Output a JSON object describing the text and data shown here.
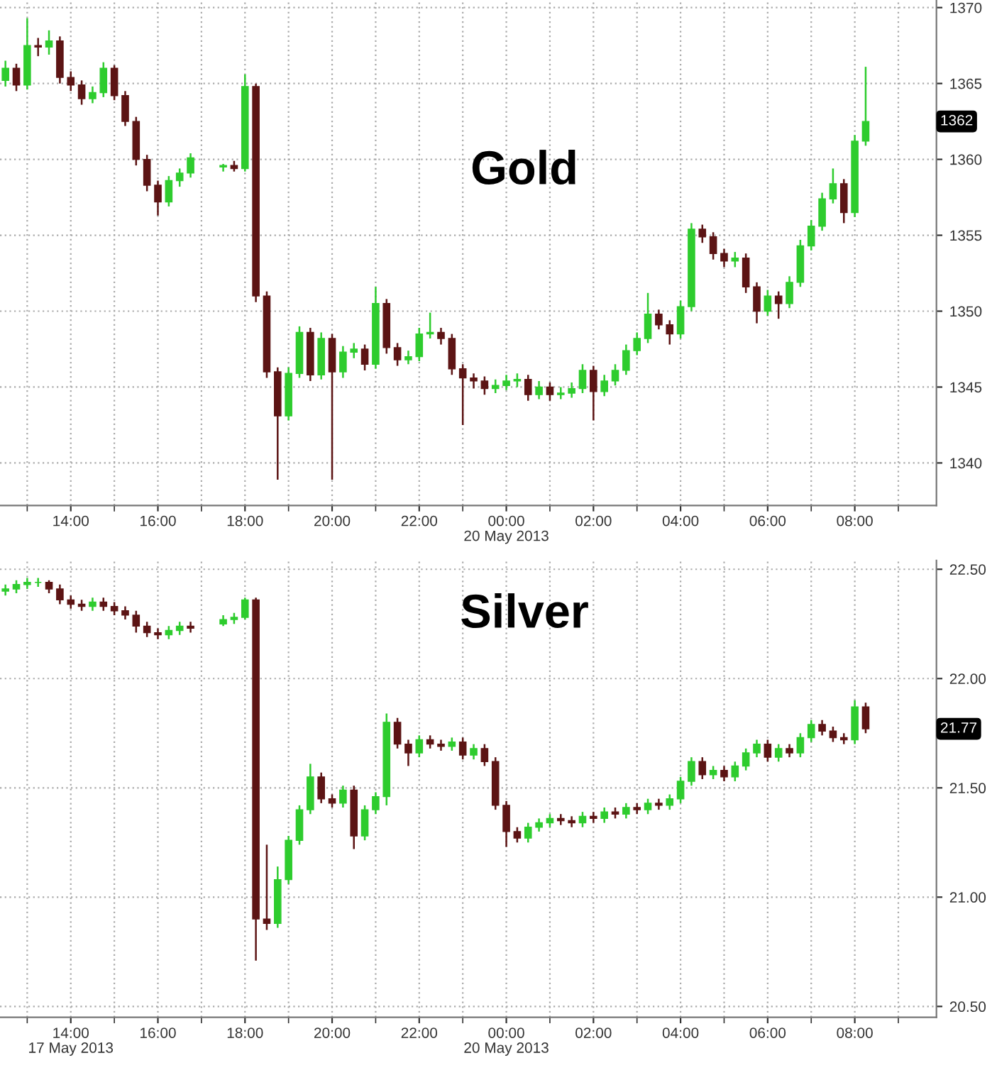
{
  "chart_data": [
    {
      "type": "candlestick",
      "title": "Gold",
      "grid": true,
      "categories": [
        null,
        null,
        null,
        null,
        null,
        null,
        "14:00",
        null,
        null,
        null,
        null,
        null,
        null,
        null,
        "16:00",
        null,
        null,
        null,
        null,
        null,
        null,
        null,
        "18:00",
        null,
        null,
        null,
        null,
        null,
        null,
        null,
        "20:00",
        null,
        null,
        null,
        null,
        null,
        null,
        null,
        "22:00",
        null,
        null,
        null,
        null,
        null,
        null,
        null,
        "00:00\n20 May 2013",
        null,
        null,
        null,
        null,
        null,
        null,
        null,
        "02:00",
        null,
        null,
        null,
        null,
        null,
        null,
        null,
        "04:00",
        null,
        null,
        null,
        null,
        null,
        null,
        null,
        "06:00",
        null,
        null,
        null,
        null,
        null,
        null,
        null,
        "08:00",
        null,
        null,
        null,
        null,
        null,
        null,
        null
      ],
      "ylim": [
        1337.2,
        1370.5
      ],
      "yticks": [
        1340,
        1345,
        1350,
        1355,
        1360,
        1365,
        1370
      ],
      "annotations": [
        "1362"
      ],
      "colors": [
        "#2ecc2e",
        "#5c1414",
        "#2ecc2e",
        "#5c1414",
        "#2ecc2e",
        "#5c1414",
        "#5c1414",
        "#5c1414",
        "#2ecc2e",
        "#2ecc2e",
        "#5c1414",
        "#5c1414",
        "#5c1414",
        "#5c1414",
        "#5c1414",
        "#2ecc2e",
        "#2ecc2e",
        "#2ecc2e",
        null,
        null,
        "#2ecc2e",
        "#5c1414",
        "#2ecc2e",
        "#5c1414",
        "#5c1414",
        "#5c1414",
        "#2ecc2e",
        "#2ecc2e",
        "#5c1414",
        "#2ecc2e",
        "#5c1414",
        "#2ecc2e",
        "#2ecc2e",
        "#5c1414",
        "#2ecc2e",
        "#5c1414",
        "#5c1414",
        "#2ecc2e",
        "#2ecc2e",
        "#2ecc2e",
        "#5c1414",
        "#5c1414",
        "#5c1414",
        "#5c1414",
        "#5c1414",
        "#2ecc2e",
        "#2ecc2e",
        "#2ecc2e",
        "#5c1414",
        "#2ecc2e",
        "#5c1414",
        "#2ecc2e",
        "#2ecc2e",
        "#2ecc2e",
        "#5c1414",
        "#2ecc2e",
        "#2ecc2e",
        "#2ecc2e",
        "#2ecc2e",
        "#2ecc2e",
        "#5c1414",
        "#5c1414",
        "#2ecc2e",
        "#2ecc2e",
        "#5c1414",
        "#5c1414",
        "#5c1414",
        "#2ecc2e",
        "#5c1414",
        "#5c1414",
        "#2ecc2e",
        "#5c1414",
        "#2ecc2e",
        "#2ecc2e",
        "#2ecc2e",
        "#2ecc2e",
        "#2ecc2e",
        "#5c1414",
        "#2ecc2e",
        "#2ecc2e",
        null,
        null,
        null,
        null,
        null,
        null
      ],
      "ohlc": [
        [
          1365.2,
          1366.5,
          1364.8,
          1366.0
        ],
        [
          1366.0,
          1366.3,
          1364.5,
          1364.9
        ],
        [
          1364.9,
          1369.3,
          1364.6,
          1367.5
        ],
        [
          1367.5,
          1368.0,
          1366.8,
          1367.4
        ],
        [
          1367.4,
          1368.5,
          1366.9,
          1367.8
        ],
        [
          1367.8,
          1368.1,
          1365.0,
          1365.4
        ],
        [
          1365.4,
          1365.8,
          1364.5,
          1364.9
        ],
        [
          1364.9,
          1365.2,
          1363.6,
          1364.0
        ],
        [
          1364.0,
          1364.8,
          1363.7,
          1364.4
        ],
        [
          1364.4,
          1366.4,
          1364.1,
          1366.0
        ],
        [
          1366.0,
          1366.2,
          1363.9,
          1364.2
        ],
        [
          1364.2,
          1364.5,
          1362.2,
          1362.5
        ],
        [
          1362.5,
          1362.8,
          1359.6,
          1360.0
        ],
        [
          1360.0,
          1360.3,
          1357.9,
          1358.3
        ],
        [
          1358.3,
          1358.6,
          1356.3,
          1357.2
        ],
        [
          1357.2,
          1358.9,
          1356.9,
          1358.6
        ],
        [
          1358.6,
          1359.4,
          1358.2,
          1359.1
        ],
        [
          1359.1,
          1360.4,
          1358.8,
          1360.1
        ],
        null,
        null,
        [
          1359.5,
          1359.7,
          1359.2,
          1359.6
        ],
        [
          1359.6,
          1359.9,
          1359.2,
          1359.4
        ],
        [
          1359.4,
          1365.6,
          1359.2,
          1364.8
        ],
        [
          1364.8,
          1365.0,
          1350.6,
          1351.0
        ],
        [
          1351.0,
          1351.3,
          1345.6,
          1346.0
        ],
        [
          1346.0,
          1346.3,
          1338.9,
          1343.1
        ],
        [
          1343.1,
          1346.3,
          1342.8,
          1345.9
        ],
        [
          1345.9,
          1349.0,
          1345.6,
          1348.6
        ],
        [
          1348.6,
          1348.9,
          1345.4,
          1345.8
        ],
        [
          1345.8,
          1348.6,
          1345.5,
          1348.2
        ],
        [
          1348.2,
          1348.5,
          1338.9,
          1346.0
        ],
        [
          1346.0,
          1347.7,
          1345.6,
          1347.3
        ],
        [
          1347.3,
          1347.9,
          1346.9,
          1347.5
        ],
        [
          1347.5,
          1347.8,
          1346.1,
          1346.5
        ],
        [
          1346.5,
          1351.6,
          1346.2,
          1350.5
        ],
        [
          1350.5,
          1350.8,
          1347.2,
          1347.6
        ],
        [
          1347.6,
          1347.9,
          1346.4,
          1346.8
        ],
        [
          1346.8,
          1347.4,
          1346.5,
          1347.0
        ],
        [
          1347.0,
          1348.9,
          1346.7,
          1348.5
        ],
        [
          1348.5,
          1349.9,
          1348.2,
          1348.6
        ],
        [
          1348.6,
          1348.9,
          1347.8,
          1348.2
        ],
        [
          1348.2,
          1348.5,
          1345.8,
          1346.2
        ],
        [
          1346.2,
          1346.5,
          1342.5,
          1345.6
        ],
        [
          1345.6,
          1345.9,
          1344.9,
          1345.4
        ],
        [
          1345.4,
          1345.7,
          1344.5,
          1344.9
        ],
        [
          1344.9,
          1345.5,
          1344.6,
          1345.1
        ],
        [
          1345.1,
          1345.8,
          1344.8,
          1345.4
        ],
        [
          1345.4,
          1345.9,
          1345.0,
          1345.5
        ],
        [
          1345.5,
          1345.8,
          1344.1,
          1344.5
        ],
        [
          1344.5,
          1345.4,
          1344.2,
          1345.0
        ],
        [
          1345.0,
          1345.3,
          1344.1,
          1344.5
        ],
        [
          1344.5,
          1345.0,
          1344.2,
          1344.6
        ],
        [
          1344.6,
          1345.3,
          1344.3,
          1344.9
        ],
        [
          1344.9,
          1346.5,
          1344.6,
          1346.1
        ],
        [
          1346.1,
          1346.4,
          1342.8,
          1344.7
        ],
        [
          1344.7,
          1345.8,
          1344.4,
          1345.4
        ],
        [
          1345.4,
          1346.5,
          1345.1,
          1346.1
        ],
        [
          1346.1,
          1347.8,
          1345.8,
          1347.4
        ],
        [
          1347.4,
          1348.6,
          1347.1,
          1348.2
        ],
        [
          1348.2,
          1351.2,
          1347.9,
          1349.8
        ],
        [
          1349.8,
          1350.1,
          1348.8,
          1349.1
        ],
        [
          1349.1,
          1349.4,
          1347.8,
          1348.5
        ],
        [
          1348.5,
          1350.7,
          1348.2,
          1350.3
        ],
        [
          1350.3,
          1355.8,
          1350.0,
          1355.4
        ],
        [
          1355.4,
          1355.7,
          1354.5,
          1354.9
        ],
        [
          1354.9,
          1355.2,
          1353.4,
          1353.8
        ],
        [
          1353.8,
          1354.1,
          1352.9,
          1353.3
        ],
        [
          1353.3,
          1353.9,
          1352.9,
          1353.5
        ],
        [
          1353.5,
          1353.8,
          1351.2,
          1351.6
        ],
        [
          1351.6,
          1351.9,
          1349.2,
          1350.0
        ],
        [
          1350.0,
          1351.4,
          1349.7,
          1351.0
        ],
        [
          1351.0,
          1351.3,
          1349.5,
          1350.5
        ],
        [
          1350.5,
          1352.3,
          1350.2,
          1351.9
        ],
        [
          1351.9,
          1354.7,
          1351.6,
          1354.3
        ],
        [
          1354.3,
          1356.0,
          1354.0,
          1355.6
        ],
        [
          1355.6,
          1357.8,
          1355.3,
          1357.4
        ],
        [
          1357.4,
          1359.4,
          1357.1,
          1358.4
        ],
        [
          1358.4,
          1358.7,
          1355.8,
          1356.5
        ],
        [
          1356.5,
          1361.6,
          1356.2,
          1361.2
        ],
        [
          1361.2,
          1366.1,
          1360.9,
          1362.5
        ],
        null,
        null,
        null,
        null,
        null,
        null
      ]
    },
    {
      "type": "candlestick",
      "title": "Silver",
      "grid": true,
      "categories": [
        null,
        null,
        null,
        null,
        null,
        null,
        "14:00\n17 May 2013",
        null,
        null,
        null,
        null,
        null,
        null,
        null,
        "16:00",
        null,
        null,
        null,
        null,
        null,
        null,
        null,
        "18:00",
        null,
        null,
        null,
        null,
        null,
        null,
        null,
        "20:00",
        null,
        null,
        null,
        null,
        null,
        null,
        null,
        "22:00",
        null,
        null,
        null,
        null,
        null,
        null,
        null,
        "00:00\n20 May 2013",
        null,
        null,
        null,
        null,
        null,
        null,
        null,
        "02:00",
        null,
        null,
        null,
        null,
        null,
        null,
        null,
        "04:00",
        null,
        null,
        null,
        null,
        null,
        null,
        null,
        "06:00",
        null,
        null,
        null,
        null,
        null,
        null,
        null,
        "08:00",
        null,
        null,
        null,
        null,
        null,
        null,
        null
      ],
      "ylim": [
        20.45,
        22.54
      ],
      "yticks": [
        {
          "value": 20.5,
          "label": "20.50"
        },
        {
          "value": 21.0,
          "label": "21.00"
        },
        {
          "value": 21.5,
          "label": "21.50"
        },
        {
          "value": 22.0,
          "label": "22.00"
        },
        {
          "value": 22.5,
          "label": "22.50"
        }
      ],
      "annotations": [
        "21.77"
      ],
      "colors": [
        "#2ecc2e",
        "#2ecc2e",
        "#2ecc2e",
        "#2ecc2e",
        "#5c1414",
        "#5c1414",
        "#5c1414",
        "#5c1414",
        "#2ecc2e",
        "#5c1414",
        "#5c1414",
        "#5c1414",
        "#5c1414",
        "#5c1414",
        "#5c1414",
        "#2ecc2e",
        "#2ecc2e",
        "#5c1414",
        null,
        null,
        "#2ecc2e",
        "#2ecc2e",
        "#2ecc2e",
        "#5c1414",
        "#5c1414",
        "#2ecc2e",
        "#2ecc2e",
        "#2ecc2e",
        "#2ecc2e",
        "#5c1414",
        "#5c1414",
        "#2ecc2e",
        "#5c1414",
        "#2ecc2e",
        "#2ecc2e",
        "#2ecc2e",
        "#5c1414",
        "#5c1414",
        "#2ecc2e",
        "#5c1414",
        "#5c1414",
        "#2ecc2e",
        "#5c1414",
        "#2ecc2e",
        "#5c1414",
        "#5c1414",
        "#5c1414",
        "#5c1414",
        "#2ecc2e",
        "#2ecc2e",
        "#2ecc2e",
        "#5c1414",
        "#5c1414",
        "#2ecc2e",
        "#5c1414",
        "#2ecc2e",
        "#5c1414",
        "#2ecc2e",
        "#5c1414",
        "#2ecc2e",
        "#5c1414",
        "#2ecc2e",
        "#2ecc2e",
        "#2ecc2e",
        "#5c1414",
        "#2ecc2e",
        "#5c1414",
        "#2ecc2e",
        "#2ecc2e",
        "#2ecc2e",
        "#5c1414",
        "#2ecc2e",
        "#5c1414",
        "#2ecc2e",
        "#2ecc2e",
        "#5c1414",
        "#5c1414",
        "#5c1414",
        "#2ecc2e",
        "#5c1414",
        null,
        null,
        null,
        null,
        null,
        null
      ],
      "ohlc": [
        [
          22.4,
          22.43,
          22.38,
          22.41
        ],
        [
          22.41,
          22.45,
          22.39,
          22.43
        ],
        [
          22.43,
          22.46,
          22.41,
          22.44
        ],
        [
          22.44,
          22.46,
          22.42,
          22.44
        ],
        [
          22.44,
          22.45,
          22.39,
          22.41
        ],
        [
          22.41,
          22.43,
          22.34,
          22.36
        ],
        [
          22.36,
          22.38,
          22.32,
          22.34
        ],
        [
          22.34,
          22.36,
          22.31,
          22.33
        ],
        [
          22.33,
          22.37,
          22.31,
          22.35
        ],
        [
          22.35,
          22.37,
          22.31,
          22.33
        ],
        [
          22.33,
          22.35,
          22.29,
          22.31
        ],
        [
          22.31,
          22.33,
          22.27,
          22.29
        ],
        [
          22.29,
          22.31,
          22.21,
          22.24
        ],
        [
          22.24,
          22.26,
          22.19,
          22.21
        ],
        [
          22.21,
          22.23,
          22.18,
          22.2
        ],
        [
          22.2,
          22.24,
          22.18,
          22.22
        ],
        [
          22.22,
          22.26,
          22.2,
          22.24
        ],
        [
          22.24,
          22.26,
          22.21,
          22.23
        ],
        null,
        null,
        [
          22.25,
          22.29,
          22.24,
          22.27
        ],
        [
          22.27,
          22.3,
          22.25,
          22.28
        ],
        [
          22.28,
          22.37,
          22.27,
          22.36
        ],
        [
          22.36,
          22.37,
          20.71,
          20.9
        ],
        [
          20.9,
          21.24,
          20.85,
          20.88
        ],
        [
          20.88,
          21.14,
          20.86,
          21.08
        ],
        [
          21.08,
          21.28,
          21.06,
          21.26
        ],
        [
          21.26,
          21.42,
          21.24,
          21.4
        ],
        [
          21.4,
          21.61,
          21.38,
          21.55
        ],
        [
          21.55,
          21.57,
          21.43,
          21.45
        ],
        [
          21.45,
          21.47,
          21.41,
          21.43
        ],
        [
          21.43,
          21.51,
          21.41,
          21.49
        ],
        [
          21.49,
          21.51,
          21.22,
          21.28
        ],
        [
          21.28,
          21.42,
          21.26,
          21.4
        ],
        [
          21.4,
          21.48,
          21.38,
          21.46
        ],
        [
          21.46,
          21.84,
          21.42,
          21.8
        ],
        [
          21.8,
          21.82,
          21.68,
          21.7
        ],
        [
          21.7,
          21.72,
          21.6,
          21.66
        ],
        [
          21.66,
          21.74,
          21.64,
          21.72
        ],
        [
          21.72,
          21.74,
          21.68,
          21.7
        ],
        [
          21.7,
          21.72,
          21.67,
          21.69
        ],
        [
          21.69,
          21.73,
          21.67,
          21.71
        ],
        [
          21.71,
          21.73,
          21.63,
          21.65
        ],
        [
          21.65,
          21.7,
          21.63,
          21.68
        ],
        [
          21.68,
          21.7,
          21.6,
          21.62
        ],
        [
          21.62,
          21.64,
          21.4,
          21.42
        ],
        [
          21.42,
          21.44,
          21.23,
          21.3
        ],
        [
          21.3,
          21.32,
          21.25,
          21.27
        ],
        [
          21.27,
          21.34,
          21.25,
          21.32
        ],
        [
          21.32,
          21.36,
          21.3,
          21.34
        ],
        [
          21.34,
          21.38,
          21.32,
          21.36
        ],
        [
          21.36,
          21.38,
          21.33,
          21.35
        ],
        [
          21.35,
          21.37,
          21.32,
          21.34
        ],
        [
          21.34,
          21.39,
          21.32,
          21.37
        ],
        [
          21.37,
          21.39,
          21.34,
          21.36
        ],
        [
          21.36,
          21.41,
          21.34,
          21.39
        ],
        [
          21.39,
          21.41,
          21.36,
          21.38
        ],
        [
          21.38,
          21.43,
          21.36,
          21.41
        ],
        [
          21.41,
          21.43,
          21.38,
          21.4
        ],
        [
          21.4,
          21.45,
          21.38,
          21.43
        ],
        [
          21.43,
          21.45,
          21.4,
          21.42
        ],
        [
          21.42,
          21.47,
          21.4,
          21.45
        ],
        [
          21.45,
          21.55,
          21.43,
          21.53
        ],
        [
          21.53,
          21.64,
          21.51,
          21.62
        ],
        [
          21.62,
          21.64,
          21.54,
          21.56
        ],
        [
          21.56,
          21.6,
          21.54,
          21.58
        ],
        [
          21.58,
          21.6,
          21.53,
          21.55
        ],
        [
          21.55,
          21.62,
          21.53,
          21.6
        ],
        [
          21.6,
          21.68,
          21.58,
          21.66
        ],
        [
          21.66,
          21.72,
          21.64,
          21.7
        ],
        [
          21.7,
          21.72,
          21.62,
          21.64
        ],
        [
          21.64,
          21.7,
          21.62,
          21.68
        ],
        [
          21.68,
          21.7,
          21.64,
          21.66
        ],
        [
          21.66,
          21.75,
          21.64,
          21.73
        ],
        [
          21.73,
          21.81,
          21.71,
          21.79
        ],
        [
          21.79,
          21.81,
          21.74,
          21.76
        ],
        [
          21.76,
          21.78,
          21.71,
          21.73
        ],
        [
          21.73,
          21.75,
          21.7,
          21.72
        ],
        [
          21.72,
          21.9,
          21.7,
          21.87
        ],
        [
          21.87,
          21.89,
          21.75,
          21.77
        ],
        null,
        null,
        null,
        null,
        null,
        null
      ]
    }
  ]
}
